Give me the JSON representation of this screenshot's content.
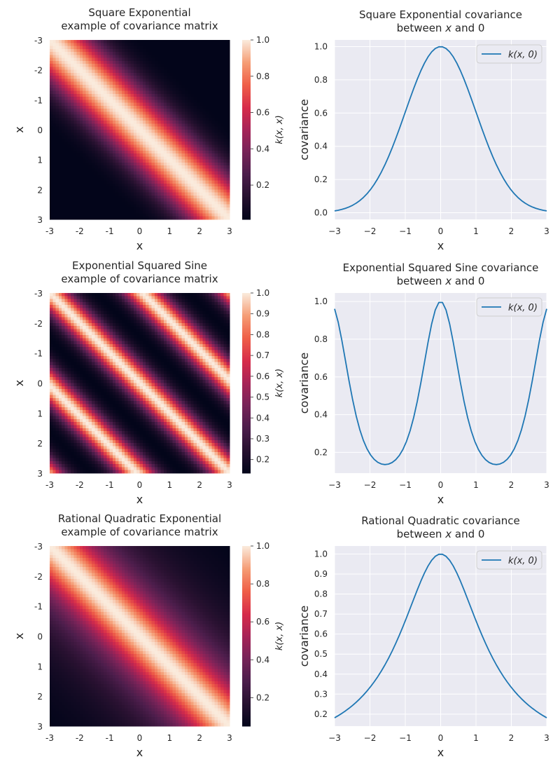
{
  "chart_data": [
    {
      "type": "heatmap",
      "kernel": "square_exponential",
      "title": "Square Exponential\nexample of covariance matrix",
      "xlabel": "x",
      "ylabel": "x",
      "xticklabels": [
        "-3",
        "-2",
        "-1",
        "0",
        "1",
        "2",
        "3"
      ],
      "yticklabels": [
        "-3",
        "-2",
        "-1",
        "0",
        "1",
        "2",
        "3"
      ],
      "grid_size": 60,
      "x_range": [
        -3,
        3
      ],
      "params": {
        "length_scale": 1.0
      },
      "colorbar": {
        "label": "k(x, x)",
        "min": 0.011,
        "max": 1.0,
        "ticks": [
          0.2,
          0.4,
          0.6,
          0.8,
          1.0
        ],
        "ticklabels": [
          "0.2",
          "0.4",
          "0.6",
          "0.8",
          "1.0"
        ]
      }
    },
    {
      "type": "line",
      "kernel": "square_exponential",
      "title_line1": "Square Exponential covariance",
      "title_line2": "between",
      "title_var": "x",
      "title_line2_end": "and 0",
      "xlabel": "x",
      "ylabel": "covariance",
      "xlim": [
        -3,
        3
      ],
      "ylim": [
        -0.04,
        1.04
      ],
      "xticks": [
        -3,
        -2,
        -1,
        0,
        1,
        2,
        3
      ],
      "xticklabels": [
        "−3",
        "−2",
        "−1",
        "0",
        "1",
        "2",
        "3"
      ],
      "yticks": [
        0.0,
        0.2,
        0.4,
        0.6,
        0.8,
        1.0
      ],
      "yticklabels": [
        "0.0",
        "0.2",
        "0.4",
        "0.6",
        "0.8",
        "1.0"
      ],
      "num_points": 60,
      "params": {
        "length_scale": 1.0
      },
      "series": [
        {
          "name": "k(x, 0)",
          "color": "#1f77b4"
        }
      ],
      "legend_loc": "upper right"
    },
    {
      "type": "heatmap",
      "kernel": "exp_sine_squared",
      "title": "Exponential Squared Sine\nexample of covariance matrix",
      "xlabel": "x",
      "ylabel": "x",
      "xticklabels": [
        "-3",
        "-2",
        "-1",
        "0",
        "1",
        "2",
        "3"
      ],
      "yticklabels": [
        "-3",
        "-2",
        "-1",
        "0",
        "1",
        "2",
        "3"
      ],
      "grid_size": 60,
      "x_range": [
        -3,
        3
      ],
      "params": {
        "length_scale": 1.0,
        "period": 3.14159
      },
      "colorbar": {
        "label": "k(x, x)",
        "min": 0.135,
        "max": 1.0,
        "ticks": [
          0.2,
          0.3,
          0.4,
          0.5,
          0.6,
          0.7,
          0.8,
          0.9,
          1.0
        ],
        "ticklabels": [
          "0.2",
          "0.3",
          "0.4",
          "0.5",
          "0.6",
          "0.7",
          "0.8",
          "0.9",
          "1.0"
        ]
      }
    },
    {
      "type": "line",
      "kernel": "exp_sine_squared",
      "title_line1": "Exponential Squared Sine covariance",
      "title_line2": "between",
      "title_var": "x",
      "title_line2_end": "and 0",
      "xlabel": "x",
      "ylabel": "covariance",
      "xlim": [
        -3,
        3
      ],
      "ylim": [
        0.09,
        1.045
      ],
      "xticks": [
        -3,
        -2,
        -1,
        0,
        1,
        2,
        3
      ],
      "xticklabels": [
        "−3",
        "−2",
        "−1",
        "0",
        "1",
        "2",
        "3"
      ],
      "yticks": [
        0.2,
        0.4,
        0.6,
        0.8,
        1.0
      ],
      "yticklabels": [
        "0.2",
        "0.4",
        "0.6",
        "0.8",
        "1.0"
      ],
      "num_points": 60,
      "params": {
        "length_scale": 1.0,
        "period": 3.14159
      },
      "series": [
        {
          "name": "k(x, 0)",
          "color": "#1f77b4"
        }
      ],
      "legend_loc": "upper right"
    },
    {
      "type": "heatmap",
      "kernel": "rational_quadratic",
      "title": "Rational Quadratic Exponential\nexample of covariance matrix",
      "xlabel": "x",
      "ylabel": "x",
      "xticklabels": [
        "-3",
        "-2",
        "-1",
        "0",
        "1",
        "2",
        "3"
      ],
      "yticklabels": [
        "-3",
        "-2",
        "-1",
        "0",
        "1",
        "2",
        "3"
      ],
      "grid_size": 60,
      "x_range": [
        -3,
        3
      ],
      "params": {
        "length_scale": 1.0,
        "alpha": 1.0
      },
      "colorbar": {
        "label": "k(x, x)",
        "min": 0.05,
        "max": 1.0,
        "ticks": [
          0.2,
          0.4,
          0.6,
          0.8,
          1.0
        ],
        "ticklabels": [
          "0.2",
          "0.4",
          "0.6",
          "0.8",
          "1.0"
        ]
      }
    },
    {
      "type": "line",
      "kernel": "rational_quadratic",
      "title_line1": "Rational Quadratic covariance",
      "title_line2": "between",
      "title_var": "x",
      "title_line2_end": "and 0",
      "xlabel": "x",
      "ylabel": "covariance",
      "xlim": [
        -3,
        3
      ],
      "ylim": [
        0.14,
        1.04
      ],
      "xticks": [
        -3,
        -2,
        -1,
        0,
        1,
        2,
        3
      ],
      "xticklabels": [
        "−3",
        "−2",
        "−1",
        "0",
        "1",
        "2",
        "3"
      ],
      "yticks": [
        0.2,
        0.3,
        0.4,
        0.5,
        0.6,
        0.7,
        0.8,
        0.9,
        1.0
      ],
      "yticklabels": [
        "0.2",
        "0.3",
        "0.4",
        "0.5",
        "0.6",
        "0.7",
        "0.8",
        "0.9",
        "1.0"
      ],
      "num_points": 60,
      "params": {
        "length_scale": 1.0,
        "alpha": 1.0
      },
      "series": [
        {
          "name": "k(x, 0)",
          "color": "#1f77b4"
        }
      ],
      "legend_loc": "upper right"
    }
  ],
  "style": {
    "axes_bg": "#eaeaf2",
    "grid_color": "#ffffff",
    "text_color": "#262626",
    "line_color": "#1f77b4"
  }
}
